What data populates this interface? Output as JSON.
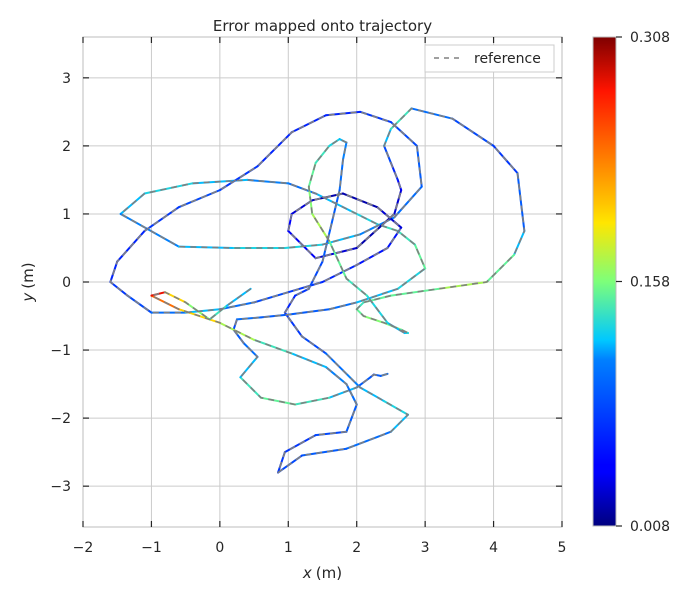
{
  "chart_data": {
    "type": "line",
    "title": "Error mapped onto trajectory",
    "xlabel_var": "x",
    "xlabel_unit": "(m)",
    "ylabel_var": "y",
    "ylabel_unit": "(m)",
    "xlim": [
      -2,
      5
    ],
    "ylim": [
      -3.6,
      3.6
    ],
    "xticks": [
      -2,
      -1,
      0,
      1,
      2,
      3,
      4,
      5
    ],
    "yticks": [
      -3,
      -2,
      -1,
      0,
      1,
      2,
      3
    ],
    "grid": true,
    "legend": {
      "position": "top-right",
      "entries": [
        "reference"
      ]
    },
    "colorbar": {
      "min": 0.008,
      "max": 0.308,
      "tick_values": [
        0.008,
        0.158,
        0.308
      ],
      "tick_labels": [
        "0.008",
        "0.158",
        "0.308"
      ],
      "colormap": "jet"
    },
    "series": [
      {
        "name": "reference",
        "style": "dashed",
        "color": "#808080",
        "x": [
          2.45,
          2.35,
          2.25,
          2.2,
          2.0,
          1.6,
          1.1,
          0.6,
          0.3,
          0.55,
          0.35,
          0.2,
          0.25,
          0.6,
          1.0,
          1.6,
          2.0,
          2.6,
          3.0,
          2.85,
          2.6,
          2.3,
          1.9,
          1.4,
          1.0,
          0.4,
          -0.4,
          -1.1,
          -1.45,
          -0.6,
          0.2,
          0.95,
          1.5,
          2.05,
          2.55,
          2.95,
          2.88,
          2.5,
          2.05,
          1.55,
          1.05,
          0.55,
          0.0,
          -0.6,
          -1.1,
          -1.5,
          -1.6,
          -1.35,
          -1.0,
          -0.5,
          0.0,
          0.5,
          1.0,
          1.5,
          2.0,
          2.45,
          2.65,
          2.3,
          1.8,
          1.35,
          1.05,
          1.0,
          1.4,
          2.0,
          2.55,
          2.65,
          2.6,
          2.5,
          2.4,
          2.5,
          2.8,
          3.4,
          4.0,
          4.35,
          4.45,
          4.3,
          3.9,
          3.2,
          2.5,
          2.1,
          2.0,
          2.1,
          2.4,
          2.65,
          2.75,
          2.7,
          2.45,
          2.15,
          1.85,
          1.6,
          1.35,
          1.3,
          1.4,
          1.6,
          1.75,
          1.85,
          1.8,
          1.75,
          1.5,
          1.3,
          1.1,
          0.95,
          1.2,
          1.55,
          1.8,
          2.05,
          2.4,
          2.75,
          2.5,
          1.85,
          1.2,
          0.85,
          0.95,
          1.4,
          1.85,
          2.0,
          1.85,
          1.55,
          1.05,
          0.5,
          0.0,
          -0.6,
          -1.0,
          -0.8,
          -0.5,
          -0.15,
          0.1,
          0.45
        ],
        "y": [
          -1.35,
          -1.38,
          -1.36,
          -1.4,
          -1.55,
          -1.7,
          -1.8,
          -1.7,
          -1.4,
          -1.1,
          -0.9,
          -0.7,
          -0.55,
          -0.52,
          -0.48,
          -0.4,
          -0.3,
          -0.1,
          0.2,
          0.55,
          0.75,
          0.85,
          1.05,
          1.3,
          1.45,
          1.5,
          1.45,
          1.3,
          1.0,
          0.52,
          0.5,
          0.5,
          0.55,
          0.7,
          0.95,
          1.4,
          2.0,
          2.35,
          2.5,
          2.45,
          2.2,
          1.7,
          1.35,
          1.1,
          0.75,
          0.3,
          0.0,
          -0.2,
          -0.45,
          -0.45,
          -0.4,
          -0.3,
          -0.15,
          0.0,
          0.25,
          0.5,
          0.8,
          1.1,
          1.3,
          1.2,
          1.0,
          0.75,
          0.35,
          0.5,
          1.0,
          1.35,
          1.5,
          1.75,
          2.0,
          2.25,
          2.55,
          2.4,
          2.0,
          1.6,
          0.75,
          0.4,
          0.0,
          -0.1,
          -0.2,
          -0.3,
          -0.4,
          -0.5,
          -0.6,
          -0.7,
          -0.75,
          -0.75,
          -0.6,
          -0.2,
          0.05,
          0.6,
          1.0,
          1.4,
          1.75,
          2.0,
          2.1,
          2.05,
          1.8,
          1.35,
          0.3,
          -0.1,
          -0.2,
          -0.45,
          -0.8,
          -1.05,
          -1.3,
          -1.55,
          -1.75,
          -1.95,
          -2.2,
          -2.45,
          -2.55,
          -2.8,
          -2.5,
          -2.25,
          -2.2,
          -1.8,
          -1.5,
          -1.25,
          -1.05,
          -0.85,
          -0.6,
          -0.4,
          -0.2,
          -0.15,
          -0.3,
          -0.55,
          -0.35,
          -0.1
        ],
        "error": [
          0.1,
          0.09,
          0.08,
          0.09,
          0.12,
          0.14,
          0.15,
          0.14,
          0.12,
          0.1,
          0.09,
          0.08,
          0.1,
          0.09,
          0.09,
          0.1,
          0.12,
          0.13,
          0.15,
          0.14,
          0.14,
          0.13,
          0.12,
          0.1,
          0.11,
          0.12,
          0.13,
          0.12,
          0.11,
          0.12,
          0.13,
          0.13,
          0.12,
          0.11,
          0.1,
          0.09,
          0.08,
          0.07,
          0.06,
          0.06,
          0.06,
          0.07,
          0.08,
          0.07,
          0.06,
          0.06,
          0.07,
          0.08,
          0.1,
          0.12,
          0.1,
          0.08,
          0.07,
          0.06,
          0.05,
          0.05,
          0.03,
          0.02,
          0.02,
          0.03,
          0.04,
          0.04,
          0.03,
          0.02,
          0.03,
          0.04,
          0.06,
          0.08,
          0.12,
          0.14,
          0.1,
          0.08,
          0.07,
          0.09,
          0.12,
          0.15,
          0.17,
          0.15,
          0.15,
          0.14,
          0.15,
          0.16,
          0.16,
          0.15,
          0.13,
          0.12,
          0.13,
          0.14,
          0.15,
          0.17,
          0.16,
          0.15,
          0.14,
          0.13,
          0.12,
          0.11,
          0.1,
          0.09,
          0.08,
          0.07,
          0.06,
          0.07,
          0.08,
          0.1,
          0.11,
          0.12,
          0.13,
          0.12,
          0.1,
          0.09,
          0.08,
          0.07,
          0.07,
          0.08,
          0.09,
          0.1,
          0.11,
          0.12,
          0.14,
          0.17,
          0.2,
          0.24,
          0.28,
          0.2,
          0.16,
          0.14,
          0.12,
          0.1
        ]
      }
    ]
  }
}
